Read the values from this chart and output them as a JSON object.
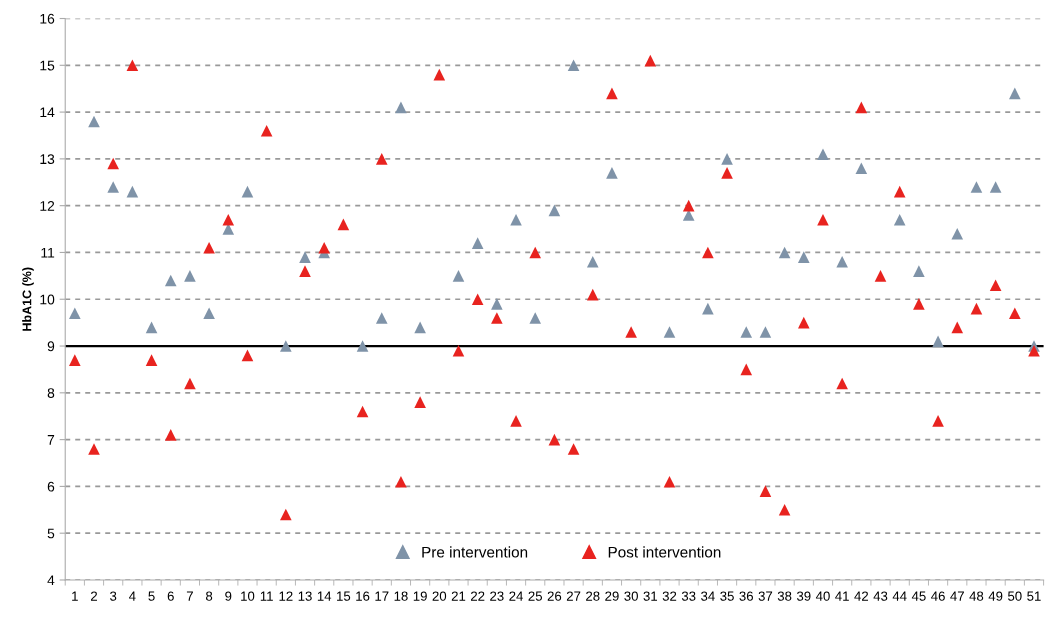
{
  "chart_data": {
    "type": "scatter",
    "ylabel": "HbA1C (%)",
    "categories": [
      "1",
      "2",
      "3",
      "4",
      "5",
      "6",
      "7",
      "8",
      "9",
      "10",
      "11",
      "12",
      "13",
      "14",
      "15",
      "16",
      "17",
      "18",
      "19",
      "20",
      "21",
      "22",
      "23",
      "24",
      "25",
      "26",
      "27",
      "28",
      "29",
      "30",
      "31",
      "32",
      "33",
      "34",
      "35",
      "36",
      "37",
      "38",
      "39",
      "40",
      "41",
      "42",
      "43",
      "44",
      "45",
      "46",
      "47",
      "48",
      "49",
      "50",
      "51"
    ],
    "series": [
      {
        "name": "Pre intervention",
        "color": "#7f93a8",
        "values": [
          9.7,
          13.8,
          12.4,
          12.3,
          9.4,
          10.4,
          10.5,
          9.7,
          11.5,
          12.3,
          null,
          9.0,
          10.9,
          11.0,
          null,
          9.0,
          9.6,
          14.1,
          9.4,
          null,
          10.5,
          11.2,
          9.9,
          11.7,
          9.6,
          11.9,
          15.0,
          10.8,
          12.7,
          null,
          null,
          9.3,
          11.8,
          9.8,
          13.0,
          9.3,
          9.3,
          11.0,
          10.9,
          13.1,
          10.8,
          12.8,
          null,
          11.7,
          10.6,
          9.1,
          11.4,
          12.4,
          12.4,
          14.4,
          9.0
        ]
      },
      {
        "name": "Post intervention",
        "color": "#e8231f",
        "values": [
          8.7,
          6.8,
          12.9,
          15.0,
          8.7,
          7.1,
          8.2,
          11.1,
          11.7,
          8.8,
          13.6,
          5.4,
          10.6,
          11.1,
          11.6,
          7.6,
          13.0,
          6.1,
          7.8,
          14.8,
          8.9,
          10.0,
          9.6,
          7.4,
          11.0,
          7.0,
          6.8,
          10.1,
          14.4,
          9.3,
          15.1,
          6.1,
          12.0,
          11.0,
          12.7,
          8.5,
          5.9,
          5.5,
          9.5,
          11.7,
          8.2,
          14.1,
          10.5,
          12.3,
          9.9,
          7.4,
          9.4,
          9.8,
          10.3,
          9.7,
          8.9
        ]
      }
    ],
    "ylim": [
      4,
      16
    ],
    "yticks": [
      4,
      5,
      6,
      7,
      8,
      9,
      10,
      11,
      12,
      13,
      14,
      15,
      16
    ],
    "ref_lines": [
      {
        "axis": "y",
        "value": 9,
        "color": "#000000",
        "line_style": "solid"
      }
    ],
    "grid": "y",
    "legend": "bottom",
    "marker": "triangle"
  }
}
